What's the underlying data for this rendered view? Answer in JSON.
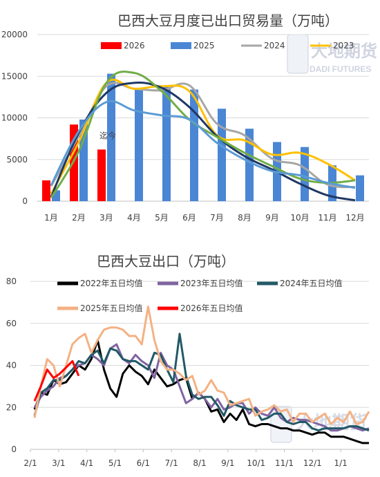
{
  "chart_data": [
    {
      "type": "bar",
      "title": "巴西大豆月度已出口贸易量（万吨）",
      "categories": [
        "1月",
        "2月",
        "3月",
        "4月",
        "5月",
        "6月",
        "7月",
        "8月",
        "9月",
        "10月",
        "11月",
        "12月"
      ],
      "ylim": [
        0,
        20000
      ],
      "yticks": [
        "0",
        "5000",
        "10000",
        "15000",
        "20000"
      ],
      "grid": true,
      "legend_position": "top",
      "bar_series": [
        {
          "name": "2026",
          "color": "#ff0000",
          "values": [
            2500,
            9200,
            6200,
            null,
            null,
            null,
            null,
            null,
            null,
            null,
            null,
            null
          ]
        },
        {
          "name": "2025",
          "color": "#4a86d4",
          "values": [
            1300,
            9800,
            15300,
            13400,
            13700,
            13400,
            11100,
            8700,
            7100,
            6500,
            4300,
            3100
          ]
        }
      ],
      "line_series": [
        {
          "name": "2024",
          "color": "#a6a6a6",
          "values": [
            1800,
            7800,
            13800,
            13500,
            13300,
            13900,
            9300,
            7900,
            5100,
            4300,
            2000,
            1700
          ]
        },
        {
          "name": "2023",
          "color": "#ffc000",
          "values": [
            900,
            7100,
            14200,
            13500,
            13800,
            13200,
            7900,
            7300,
            5600,
            5800,
            4500,
            2500
          ]
        },
        {
          "color": "#1f3864",
          "values": [
            500,
            8200,
            13000,
            14200,
            13600,
            11300,
            7800,
            5400,
            3800,
            2100,
            700,
            100
          ]
        },
        {
          "color": "#70ad47",
          "values": [
            400,
            6000,
            14200,
            15400,
            13200,
            9800,
            7700,
            5800,
            4200,
            2700,
            2200,
            2500
          ]
        },
        {
          "color": "#5b9bd5",
          "values": [
            1900,
            8400,
            11900,
            10900,
            10300,
            9800,
            7000,
            5000,
            3600,
            3100,
            2200,
            1600
          ]
        }
      ],
      "annotation": {
        "text": "迄今",
        "category": "3月",
        "value": 7500
      }
    },
    {
      "type": "line",
      "title": "巴西大豆出口（万吨）",
      "ylim": [
        0,
        80
      ],
      "yticks": [
        "0",
        "20",
        "40",
        "60",
        "80"
      ],
      "xticks": [
        "2/1",
        "3/1",
        "4/1",
        "5/1",
        "6/1",
        "7/1",
        "8/1",
        "9/1",
        "10/1",
        "11/1",
        "12/1",
        "1/1"
      ],
      "grid": true,
      "legend_position": "top",
      "series": [
        {
          "name": "2022年五日均值",
          "color": "#000000",
          "width": 3,
          "values": [
            19,
            27,
            26,
            33,
            31,
            32,
            36,
            40,
            38,
            43,
            52,
            38,
            29,
            25,
            36,
            40,
            37,
            35,
            31,
            38,
            34,
            30,
            31,
            33,
            34,
            24,
            27,
            24,
            18,
            19,
            13,
            17,
            14,
            19,
            12,
            11,
            12,
            12,
            11,
            10,
            10,
            9,
            9,
            8,
            7,
            8,
            8,
            6,
            6,
            6,
            5,
            4,
            3,
            3
          ]
        },
        {
          "name": "2023年五日均值",
          "color": "#8064a2",
          "width": 3,
          "values": [
            20,
            25,
            28,
            30,
            34,
            35,
            38,
            40,
            41,
            45,
            43,
            40,
            48,
            50,
            43,
            41,
            45,
            42,
            40,
            34,
            46,
            40,
            38,
            30,
            22,
            24,
            27,
            24,
            20,
            24,
            19,
            20,
            22,
            22,
            17,
            20,
            17,
            16,
            20,
            15,
            13,
            15,
            14,
            14,
            13,
            12,
            11,
            9,
            9,
            10,
            11,
            10,
            9,
            10
          ]
        },
        {
          "name": "2024年五日均值",
          "color": "#215967",
          "width": 3,
          "values": [
            16,
            27,
            29,
            33,
            33,
            35,
            38,
            42,
            41,
            45,
            47,
            41,
            48,
            47,
            43,
            42,
            42,
            40,
            38,
            46,
            45,
            38,
            32,
            55,
            35,
            26,
            24,
            25,
            25,
            21,
            16,
            23,
            21,
            20,
            19,
            19,
            14,
            15,
            17,
            17,
            13,
            12,
            13,
            13,
            10,
            9,
            10,
            10,
            10,
            10,
            11,
            11,
            10,
            9
          ]
        },
        {
          "name": "2025年五日均值",
          "color": "#f4b183",
          "width": 3,
          "values": [
            15,
            30,
            43,
            40,
            30,
            40,
            50,
            53,
            55,
            46,
            52,
            57,
            58,
            58,
            57,
            54,
            54,
            50,
            68,
            52,
            42,
            38,
            38,
            36,
            33,
            35,
            26,
            28,
            33,
            28,
            27,
            21,
            22,
            23,
            24,
            16,
            18,
            19,
            21,
            18,
            19,
            13,
            17,
            17,
            13,
            15,
            17,
            12,
            15,
            13,
            18,
            12,
            13,
            18
          ]
        },
        {
          "name": "2026年五日均值",
          "color": "#ff0000",
          "width": 3,
          "values": [
            23,
            30,
            38,
            34,
            36,
            39,
            42,
            35
          ]
        }
      ]
    }
  ],
  "watermark": {
    "brand_cn": "大地期货",
    "brand_en": "DADI FUTURES"
  }
}
